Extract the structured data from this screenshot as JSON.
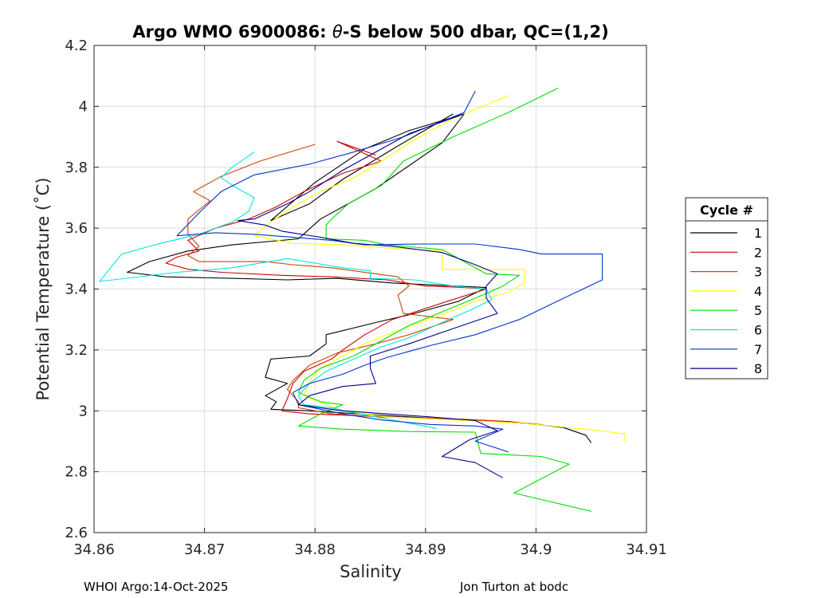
{
  "chart_data": {
    "type": "line",
    "title_parts": {
      "before": "Argo WMO 6900086: ",
      "theta": "θ",
      "after": "-S below 500 dbar,  QC=(1,2)"
    },
    "xlabel": "Salinity",
    "ylabel": "Potential Temperature (˚C)",
    "xlim": [
      34.86,
      34.91
    ],
    "ylim": [
      2.6,
      4.2
    ],
    "xticks": [
      "34.86",
      "34.87",
      "34.88",
      "34.89",
      "34.9",
      "34.91"
    ],
    "xtick_values": [
      34.86,
      34.87,
      34.88,
      34.89,
      34.9,
      34.91
    ],
    "yticks": [
      "2.6",
      "2.8",
      "3",
      "3.2",
      "3.4",
      "3.6",
      "3.8",
      "4",
      "4.2"
    ],
    "ytick_values": [
      2.6,
      2.8,
      3.0,
      3.2,
      3.4,
      3.6,
      3.8,
      4.0,
      4.2
    ],
    "grid": true,
    "legend_title": "Cycle #",
    "legend_position": "right",
    "series": [
      {
        "name": "1",
        "color": "#000000",
        "points": [
          [
            34.8925,
            3.975
          ],
          [
            34.8875,
            3.87
          ],
          [
            34.8825,
            3.76
          ],
          [
            34.8795,
            3.68
          ],
          [
            34.876,
            3.625
          ],
          [
            34.88,
            3.75
          ],
          [
            34.8845,
            3.86
          ],
          [
            34.8885,
            3.92
          ],
          [
            34.8935,
            3.975
          ],
          [
            34.8915,
            3.88
          ],
          [
            34.8855,
            3.73
          ],
          [
            34.8805,
            3.63
          ],
          [
            34.8785,
            3.565
          ],
          [
            34.8725,
            3.545
          ],
          [
            34.8685,
            3.525
          ],
          [
            34.865,
            3.49
          ],
          [
            34.863,
            3.455
          ],
          [
            34.8665,
            3.44
          ],
          [
            34.8725,
            3.435
          ],
          [
            34.8775,
            3.43
          ],
          [
            34.882,
            3.435
          ],
          [
            34.887,
            3.42
          ],
          [
            34.8955,
            3.405
          ],
          [
            34.893,
            3.36
          ],
          [
            34.889,
            3.32
          ],
          [
            34.8855,
            3.29
          ],
          [
            34.881,
            3.25
          ],
          [
            34.881,
            3.22
          ],
          [
            34.8795,
            3.18
          ],
          [
            34.876,
            3.17
          ],
          [
            34.8755,
            3.11
          ],
          [
            34.8775,
            3.09
          ],
          [
            34.8755,
            3.05
          ],
          [
            34.8765,
            3.03
          ],
          [
            34.876,
            3.005
          ],
          [
            34.8795,
            3.0
          ],
          [
            34.884,
            2.99
          ],
          [
            34.8895,
            2.978
          ],
          [
            34.8955,
            2.966
          ],
          [
            34.8995,
            2.958
          ],
          [
            34.9025,
            2.945
          ],
          [
            34.9045,
            2.92
          ],
          [
            34.905,
            2.895
          ]
        ]
      },
      {
        "name": "2",
        "color": "#cc0000",
        "points": [
          [
            34.8855,
            3.84
          ],
          [
            34.882,
            3.885
          ],
          [
            34.886,
            3.82
          ],
          [
            34.8825,
            3.78
          ],
          [
            34.879,
            3.72
          ],
          [
            34.8765,
            3.67
          ],
          [
            34.874,
            3.63
          ],
          [
            34.871,
            3.6
          ],
          [
            34.8685,
            3.56
          ],
          [
            34.8695,
            3.525
          ],
          [
            34.8675,
            3.505
          ],
          [
            34.8665,
            3.485
          ],
          [
            34.8685,
            3.465
          ],
          [
            34.8715,
            3.455
          ],
          [
            34.877,
            3.445
          ],
          [
            34.8815,
            3.44
          ],
          [
            34.8865,
            3.43
          ],
          [
            34.89,
            3.41
          ],
          [
            34.8935,
            3.405
          ],
          [
            34.8955,
            3.4
          ],
          [
            34.892,
            3.36
          ],
          [
            34.8895,
            3.33
          ],
          [
            34.887,
            3.3
          ],
          [
            34.8845,
            3.25
          ],
          [
            34.8825,
            3.2
          ],
          [
            34.8815,
            3.17
          ],
          [
            34.879,
            3.13
          ],
          [
            34.878,
            3.09
          ],
          [
            34.8775,
            3.04
          ],
          [
            34.877,
            3.0
          ],
          [
            34.8795,
            2.99
          ],
          [
            34.884,
            2.984
          ],
          [
            34.8885,
            2.978
          ],
          [
            34.8935,
            2.972
          ],
          [
            34.8975,
            2.965
          ],
          [
            34.9,
            2.955
          ]
        ]
      },
      {
        "name": "3",
        "color": "#cc4400",
        "points": [
          [
            34.88,
            3.875
          ],
          [
            34.875,
            3.82
          ],
          [
            34.8715,
            3.77
          ],
          [
            34.869,
            3.72
          ],
          [
            34.8705,
            3.69
          ],
          [
            34.8685,
            3.63
          ],
          [
            34.8685,
            3.58
          ],
          [
            34.8695,
            3.54
          ],
          [
            34.8685,
            3.51
          ],
          [
            34.8695,
            3.49
          ],
          [
            34.8725,
            3.49
          ],
          [
            34.8755,
            3.49
          ],
          [
            34.878,
            3.48
          ],
          [
            34.8815,
            3.47
          ],
          [
            34.8855,
            3.45
          ],
          [
            34.8875,
            3.44
          ],
          [
            34.8885,
            3.41
          ],
          [
            34.8875,
            3.38
          ],
          [
            34.888,
            3.32
          ],
          [
            34.8925,
            3.3
          ],
          [
            34.8885,
            3.25
          ],
          [
            34.8855,
            3.22
          ],
          [
            34.882,
            3.19
          ],
          [
            34.8795,
            3.15
          ],
          [
            34.878,
            3.1
          ],
          [
            34.8775,
            3.07
          ],
          [
            34.8785,
            3.03
          ],
          [
            34.8785,
            3.01
          ],
          [
            34.8815,
            2.99
          ],
          [
            34.886,
            2.98
          ],
          [
            34.8915,
            2.975
          ],
          [
            34.8965,
            2.965
          ],
          [
            34.9005,
            2.955
          ]
        ]
      },
      {
        "name": "4",
        "color": "#ffff00",
        "points": [
          [
            34.8975,
            4.035
          ],
          [
            34.8925,
            3.96
          ],
          [
            34.889,
            3.89
          ],
          [
            34.886,
            3.82
          ],
          [
            34.8835,
            3.765
          ],
          [
            34.8805,
            3.72
          ],
          [
            34.878,
            3.67
          ],
          [
            34.876,
            3.62
          ],
          [
            34.8745,
            3.575
          ],
          [
            34.878,
            3.55
          ],
          [
            34.8825,
            3.545
          ],
          [
            34.8865,
            3.535
          ],
          [
            34.8915,
            3.525
          ],
          [
            34.8915,
            3.465
          ],
          [
            34.8945,
            3.465
          ],
          [
            34.899,
            3.465
          ],
          [
            34.899,
            3.42
          ],
          [
            34.8975,
            3.39
          ],
          [
            34.8945,
            3.36
          ],
          [
            34.8925,
            3.33
          ],
          [
            34.8895,
            3.29
          ],
          [
            34.8865,
            3.25
          ],
          [
            34.8845,
            3.22
          ],
          [
            34.8825,
            3.18
          ],
          [
            34.8805,
            3.14
          ],
          [
            34.8795,
            3.1
          ],
          [
            34.879,
            3.05
          ],
          [
            34.8825,
            3.0
          ],
          [
            34.8865,
            2.98
          ],
          [
            34.8925,
            2.97
          ],
          [
            34.8985,
            2.96
          ],
          [
            34.9045,
            2.94
          ],
          [
            34.908,
            2.925
          ],
          [
            34.908,
            2.9
          ]
        ]
      },
      {
        "name": "5",
        "color": "#00dd00",
        "points": [
          [
            34.902,
            4.06
          ],
          [
            34.8975,
            3.98
          ],
          [
            34.8925,
            3.9
          ],
          [
            34.888,
            3.82
          ],
          [
            34.886,
            3.74
          ],
          [
            34.883,
            3.68
          ],
          [
            34.8815,
            3.63
          ],
          [
            34.881,
            3.61
          ],
          [
            34.881,
            3.565
          ],
          [
            34.8845,
            3.56
          ],
          [
            34.8865,
            3.545
          ],
          [
            34.8915,
            3.53
          ],
          [
            34.8955,
            3.45
          ],
          [
            34.8985,
            3.445
          ],
          [
            34.897,
            3.41
          ],
          [
            34.8945,
            3.37
          ],
          [
            34.8925,
            3.34
          ],
          [
            34.8885,
            3.28
          ],
          [
            34.886,
            3.23
          ],
          [
            34.8835,
            3.18
          ],
          [
            34.8805,
            3.14
          ],
          [
            34.879,
            3.1
          ],
          [
            34.8785,
            3.06
          ],
          [
            34.8805,
            3.03
          ],
          [
            34.8825,
            3.02
          ],
          [
            34.8805,
            2.99
          ],
          [
            34.8785,
            2.95
          ],
          [
            34.8825,
            2.94
          ],
          [
            34.8885,
            2.932
          ],
          [
            34.8945,
            2.93
          ],
          [
            34.895,
            2.86
          ],
          [
            34.9005,
            2.85
          ],
          [
            34.903,
            2.825
          ],
          [
            34.898,
            2.73
          ],
          [
            34.905,
            2.67
          ]
        ]
      },
      {
        "name": "6",
        "color": "#00e5e5",
        "points": [
          [
            34.8745,
            3.85
          ],
          [
            34.8725,
            3.8
          ],
          [
            34.8715,
            3.765
          ],
          [
            34.873,
            3.73
          ],
          [
            34.8745,
            3.7
          ],
          [
            34.874,
            3.655
          ],
          [
            34.8725,
            3.62
          ],
          [
            34.8695,
            3.58
          ],
          [
            34.866,
            3.55
          ],
          [
            34.8625,
            3.515
          ],
          [
            34.8615,
            3.47
          ],
          [
            34.8605,
            3.425
          ],
          [
            34.8675,
            3.455
          ],
          [
            34.8725,
            3.47
          ],
          [
            34.8775,
            3.5
          ],
          [
            34.8825,
            3.47
          ],
          [
            34.885,
            3.46
          ],
          [
            34.885,
            3.435
          ],
          [
            34.889,
            3.43
          ],
          [
            34.8925,
            3.41
          ],
          [
            34.8955,
            3.4
          ],
          [
            34.896,
            3.365
          ],
          [
            34.894,
            3.33
          ],
          [
            34.8915,
            3.29
          ],
          [
            34.8885,
            3.24
          ],
          [
            34.886,
            3.21
          ],
          [
            34.8835,
            3.17
          ],
          [
            34.881,
            3.13
          ],
          [
            34.8795,
            3.09
          ],
          [
            34.8785,
            3.05
          ],
          [
            34.879,
            3.02
          ],
          [
            34.8815,
            3.01
          ],
          [
            34.884,
            2.99
          ],
          [
            34.887,
            2.97
          ],
          [
            34.891,
            2.942
          ]
        ]
      },
      {
        "name": "7",
        "color": "#0033cc",
        "points": [
          [
            34.8945,
            4.05
          ],
          [
            34.8935,
            3.98
          ],
          [
            34.888,
            3.9
          ],
          [
            34.8835,
            3.85
          ],
          [
            34.8795,
            3.81
          ],
          [
            34.8745,
            3.775
          ],
          [
            34.8715,
            3.72
          ],
          [
            34.8695,
            3.65
          ],
          [
            34.8675,
            3.575
          ],
          [
            34.871,
            3.585
          ],
          [
            34.8745,
            3.58
          ],
          [
            34.878,
            3.57
          ],
          [
            34.8815,
            3.56
          ],
          [
            34.8845,
            3.545
          ],
          [
            34.8895,
            3.548
          ],
          [
            34.8945,
            3.548
          ],
          [
            34.8985,
            3.53
          ],
          [
            34.9005,
            3.515
          ],
          [
            34.906,
            3.515
          ],
          [
            34.906,
            3.43
          ],
          [
            34.9025,
            3.37
          ],
          [
            34.8985,
            3.3
          ],
          [
            34.8945,
            3.25
          ],
          [
            34.8905,
            3.215
          ],
          [
            34.8865,
            3.175
          ],
          [
            34.8845,
            3.15
          ],
          [
            34.8825,
            3.12
          ],
          [
            34.8795,
            3.09
          ],
          [
            34.878,
            3.06
          ],
          [
            34.8785,
            3.02
          ],
          [
            34.8825,
            2.99
          ],
          [
            34.886,
            2.97
          ],
          [
            34.8905,
            2.955
          ],
          [
            34.8945,
            2.95
          ],
          [
            34.897,
            2.94
          ],
          [
            34.8945,
            2.9
          ],
          [
            34.8975,
            2.865
          ]
        ]
      },
      {
        "name": "8",
        "color": "#00008b",
        "points": [
          [
            34.8935,
            3.975
          ],
          [
            34.8885,
            3.91
          ],
          [
            34.885,
            3.84
          ],
          [
            34.8825,
            3.79
          ],
          [
            34.8795,
            3.72
          ],
          [
            34.8775,
            3.68
          ],
          [
            34.8745,
            3.63
          ],
          [
            34.873,
            3.625
          ],
          [
            34.8755,
            3.61
          ],
          [
            34.877,
            3.59
          ],
          [
            34.8805,
            3.57
          ],
          [
            34.8835,
            3.55
          ],
          [
            34.887,
            3.54
          ],
          [
            34.8915,
            3.52
          ],
          [
            34.8945,
            3.48
          ],
          [
            34.8965,
            3.45
          ],
          [
            34.8955,
            3.41
          ],
          [
            34.8955,
            3.37
          ],
          [
            34.8965,
            3.32
          ],
          [
            34.8925,
            3.27
          ],
          [
            34.8885,
            3.22
          ],
          [
            34.885,
            3.18
          ],
          [
            34.885,
            3.14
          ],
          [
            34.8855,
            3.09
          ],
          [
            34.8825,
            3.08
          ],
          [
            34.8795,
            3.05
          ],
          [
            34.8785,
            3.02
          ],
          [
            34.8825,
            3.0
          ],
          [
            34.8865,
            2.99
          ],
          [
            34.8905,
            2.98
          ],
          [
            34.8945,
            2.968
          ],
          [
            34.8965,
            2.935
          ],
          [
            34.894,
            2.905
          ],
          [
            34.8915,
            2.85
          ],
          [
            34.8945,
            2.83
          ],
          [
            34.897,
            2.78
          ]
        ]
      }
    ]
  },
  "footer": {
    "left": "WHOI Argo:14-Oct-2025",
    "right": "Jon Turton at bodc"
  }
}
